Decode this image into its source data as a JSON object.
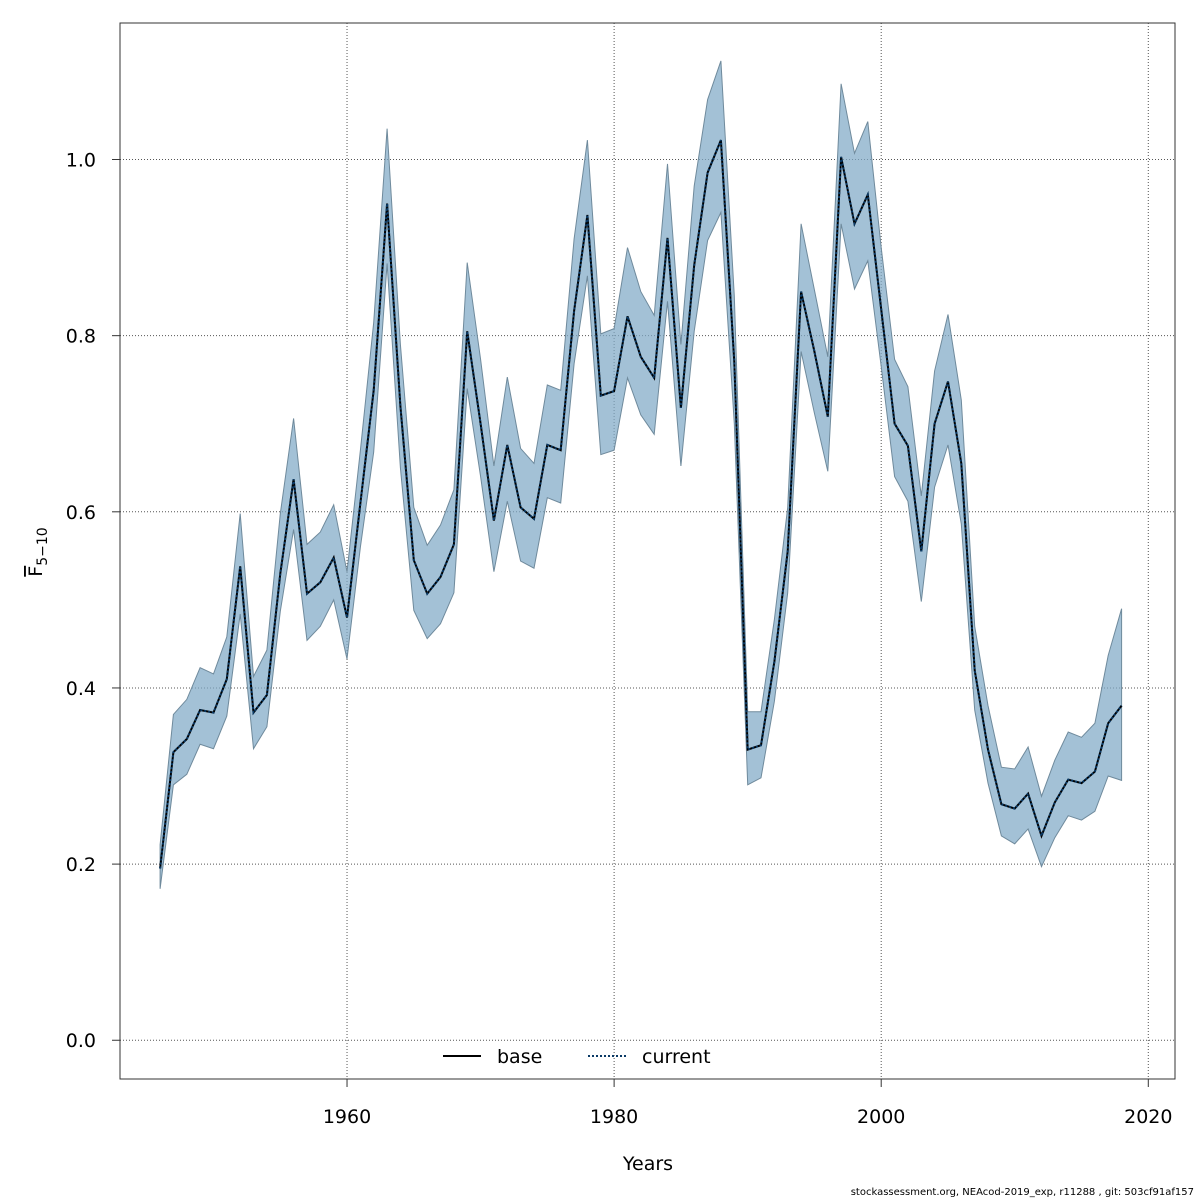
{
  "chart_data": {
    "type": "line",
    "xlabel": "Years",
    "ylabel": "F̅ 5−10",
    "ylabel_main": "F",
    "ylabel_sub": "5−10",
    "xlim": [
      1943,
      2022
    ],
    "ylim": [
      -0.044,
      1.155
    ],
    "xticks": [
      1960,
      1980,
      2000,
      2020
    ],
    "xtick_labels": [
      "1960",
      "1980",
      "2000",
      "2020"
    ],
    "yticks": [
      0.0,
      0.2,
      0.4,
      0.6,
      0.8,
      1.0
    ],
    "ytick_labels": [
      "0.0",
      "0.2",
      "0.4",
      "0.6",
      "0.8",
      "1.0"
    ],
    "grid": true,
    "legend_position": "bottom-center",
    "x": [
      1946,
      1947,
      1948,
      1949,
      1950,
      1951,
      1952,
      1953,
      1954,
      1955,
      1956,
      1957,
      1958,
      1959,
      1960,
      1961,
      1962,
      1963,
      1964,
      1965,
      1966,
      1967,
      1968,
      1969,
      1970,
      1971,
      1972,
      1973,
      1974,
      1975,
      1976,
      1977,
      1978,
      1979,
      1980,
      1981,
      1982,
      1983,
      1984,
      1985,
      1986,
      1987,
      1988,
      1989,
      1990,
      1991,
      1992,
      1993,
      1994,
      1995,
      1996,
      1997,
      1998,
      1999,
      2000,
      2001,
      2002,
      2003,
      2004,
      2005,
      2006,
      2007,
      2008,
      2009,
      2010,
      2011,
      2012,
      2013,
      2014,
      2015,
      2016,
      2017,
      2018
    ],
    "series": [
      {
        "name": "base",
        "color": "#000000",
        "style": "solid",
        "values": [
          0.195,
          0.327,
          0.342,
          0.375,
          0.372,
          0.41,
          0.538,
          0.372,
          0.392,
          0.53,
          0.637,
          0.507,
          0.52,
          0.548,
          0.48,
          0.61,
          0.738,
          0.95,
          0.72,
          0.545,
          0.507,
          0.526,
          0.563,
          0.805,
          0.7,
          0.59,
          0.676,
          0.605,
          0.592,
          0.676,
          0.67,
          0.828,
          0.937,
          0.732,
          0.737,
          0.822,
          0.776,
          0.752,
          0.911,
          0.718,
          0.88,
          0.985,
          1.022,
          0.77,
          0.33,
          0.335,
          0.43,
          0.555,
          0.85,
          0.782,
          0.708,
          1.003,
          0.927,
          0.96,
          0.83,
          0.7,
          0.675,
          0.555,
          0.7,
          0.748,
          0.655,
          0.42,
          0.33,
          0.268,
          0.263,
          0.28,
          0.232,
          0.27,
          0.296,
          0.292,
          0.305,
          0.36,
          0.38
        ]
      },
      {
        "name": "current",
        "color": "#0a3a66",
        "style": "dotted",
        "values": [
          0.195,
          0.327,
          0.342,
          0.375,
          0.372,
          0.41,
          0.538,
          0.372,
          0.392,
          0.53,
          0.637,
          0.507,
          0.52,
          0.548,
          0.48,
          0.61,
          0.738,
          0.95,
          0.72,
          0.545,
          0.507,
          0.526,
          0.563,
          0.805,
          0.7,
          0.59,
          0.676,
          0.605,
          0.592,
          0.676,
          0.67,
          0.828,
          0.937,
          0.732,
          0.737,
          0.822,
          0.776,
          0.752,
          0.911,
          0.718,
          0.88,
          0.985,
          1.022,
          0.77,
          0.33,
          0.335,
          0.43,
          0.555,
          0.85,
          0.782,
          0.708,
          1.003,
          0.927,
          0.96,
          0.83,
          0.7,
          0.675,
          0.555,
          0.7,
          0.748,
          0.655,
          0.42,
          0.33,
          0.268,
          0.263,
          0.28,
          0.232,
          0.27,
          0.296,
          0.292,
          0.305,
          0.36,
          0.38
        ]
      }
    ],
    "band": {
      "color": "#7fa9c6",
      "lower": [
        0.172,
        0.29,
        0.302,
        0.336,
        0.331,
        0.368,
        0.484,
        0.331,
        0.356,
        0.487,
        0.58,
        0.454,
        0.47,
        0.5,
        0.433,
        0.56,
        0.668,
        0.882,
        0.65,
        0.488,
        0.456,
        0.473,
        0.508,
        0.74,
        0.64,
        0.532,
        0.612,
        0.544,
        0.536,
        0.616,
        0.61,
        0.768,
        0.868,
        0.665,
        0.67,
        0.752,
        0.71,
        0.688,
        0.839,
        0.652,
        0.805,
        0.908,
        0.94,
        0.7,
        0.29,
        0.298,
        0.385,
        0.508,
        0.782,
        0.712,
        0.646,
        0.927,
        0.853,
        0.885,
        0.765,
        0.64,
        0.612,
        0.498,
        0.628,
        0.676,
        0.586,
        0.375,
        0.292,
        0.232,
        0.223,
        0.24,
        0.197,
        0.23,
        0.255,
        0.25,
        0.26,
        0.3,
        0.295
      ],
      "upper": [
        0.222,
        0.37,
        0.387,
        0.423,
        0.416,
        0.458,
        0.598,
        0.413,
        0.443,
        0.598,
        0.706,
        0.563,
        0.577,
        0.608,
        0.532,
        0.67,
        0.815,
        1.035,
        0.79,
        0.605,
        0.562,
        0.585,
        0.625,
        0.883,
        0.773,
        0.652,
        0.753,
        0.672,
        0.655,
        0.744,
        0.738,
        0.91,
        1.022,
        0.802,
        0.808,
        0.9,
        0.85,
        0.823,
        0.995,
        0.79,
        0.97,
        1.068,
        1.112,
        0.845,
        0.373,
        0.373,
        0.478,
        0.605,
        0.927,
        0.852,
        0.776,
        1.086,
        1.007,
        1.043,
        0.9,
        0.773,
        0.742,
        0.618,
        0.76,
        0.824,
        0.727,
        0.47,
        0.38,
        0.31,
        0.308,
        0.333,
        0.277,
        0.318,
        0.35,
        0.344,
        0.36,
        0.437,
        0.49
      ]
    }
  },
  "legend": {
    "items": [
      {
        "label": "base",
        "style": "solid",
        "color": "#000000"
      },
      {
        "label": "current",
        "style": "dotted",
        "color": "#0a3a66"
      }
    ]
  },
  "footer_text": "stockassessment.org, NEAcod-2019_exp, r11288 , git: 503cf91af157"
}
